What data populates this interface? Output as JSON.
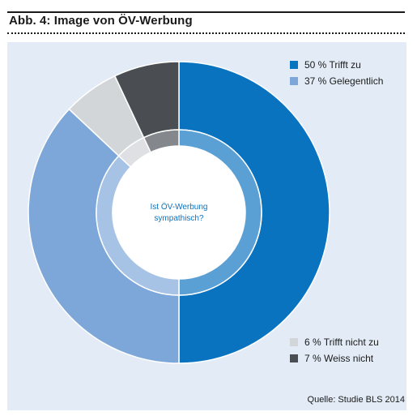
{
  "header": {
    "title": "Abb. 4: Image von ÖV-Werbung"
  },
  "chart_data": {
    "type": "pie",
    "center_label_line1": "Ist ÖV-Werbung",
    "center_label_line2": "sympathisch?",
    "series": [
      {
        "name": "Trifft zu",
        "value": 50,
        "legend_label": "50 % Trifft zu",
        "color": "#0a73c0"
      },
      {
        "name": "Gelegentlich",
        "value": 37,
        "legend_label": "37 % Gelegentlich",
        "color": "#7ea7d9"
      },
      {
        "name": "Trifft nicht zu",
        "value": 6,
        "legend_label": "6 % Trifft nicht zu",
        "color": "#d3d6d9"
      },
      {
        "name": "Weiss nicht",
        "value": 7,
        "legend_label": "7 % Weiss nicht",
        "color": "#4a4d51"
      }
    ]
  },
  "source": "Quelle: Studie BLS 2014",
  "colors": {
    "panel_background": "#e3ecf6",
    "center_text": "#0a73c0"
  }
}
